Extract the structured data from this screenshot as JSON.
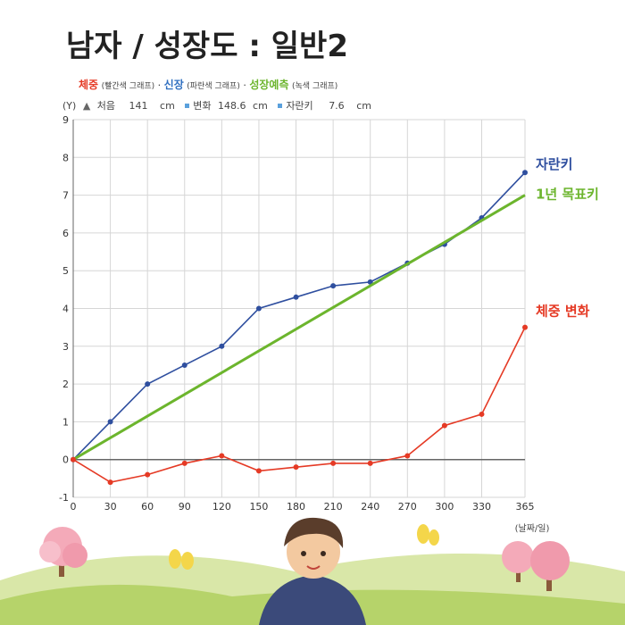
{
  "title": "남자 / 성장도 : 일반2",
  "legend": {
    "weight": {
      "label": "체중",
      "sub": "(빨간색 그래프)",
      "color": "#e53a25"
    },
    "height": {
      "label": "신장",
      "sub": "(파란색 그래프)",
      "color": "#2f4f9f"
    },
    "growth": {
      "label": "성장예측",
      "sub": "(녹색 그래프)",
      "color": "#6cb52d"
    }
  },
  "info": {
    "y_unit": "(Y)",
    "start_label": "처음",
    "start_value": "141",
    "start_unit": "cm",
    "change_label": "변화",
    "change_value": "148.6",
    "change_unit": "cm",
    "grown_label": "자란키",
    "grown_value": "7.6",
    "grown_unit": "cm"
  },
  "chart_data": {
    "type": "line",
    "x": [
      0,
      30,
      60,
      90,
      120,
      150,
      180,
      210,
      240,
      270,
      300,
      330,
      365
    ],
    "xlim": [
      0,
      365
    ],
    "ylim": [
      -1,
      9
    ],
    "x_ticks": [
      0,
      30,
      60,
      90,
      120,
      150,
      180,
      210,
      240,
      270,
      300,
      330,
      365
    ],
    "y_ticks": [
      -1,
      0,
      1,
      2,
      3,
      4,
      5,
      6,
      7,
      8,
      9
    ],
    "xlabel": "(날짜/일)",
    "grid": true,
    "series": [
      {
        "name": "자란키",
        "color": "#2f4f9f",
        "values": [
          0,
          1,
          2,
          2.5,
          3,
          4,
          4.3,
          4.6,
          4.7,
          5.2,
          5.7,
          6.4,
          7.6
        ]
      },
      {
        "name": "1년 목표키",
        "color": "#6cb52d",
        "line_only": true,
        "x": [
          0,
          365
        ],
        "values": [
          0,
          7
        ]
      },
      {
        "name": "체중 변화",
        "color": "#e53a25",
        "values": [
          0,
          -0.6,
          -0.4,
          -0.1,
          0.1,
          -0.3,
          -0.2,
          -0.1,
          -0.1,
          0.1,
          0.9,
          1.2,
          3.5
        ]
      }
    ],
    "series_labels": [
      {
        "text": "자란키",
        "color": "#2f4f9f",
        "at_y": 7.8
      },
      {
        "text": "1년 목표키",
        "color": "#6cb52d",
        "at_y": 7.0
      },
      {
        "text": "체중 변화",
        "color": "#e53a25",
        "at_y": 3.9
      }
    ]
  }
}
